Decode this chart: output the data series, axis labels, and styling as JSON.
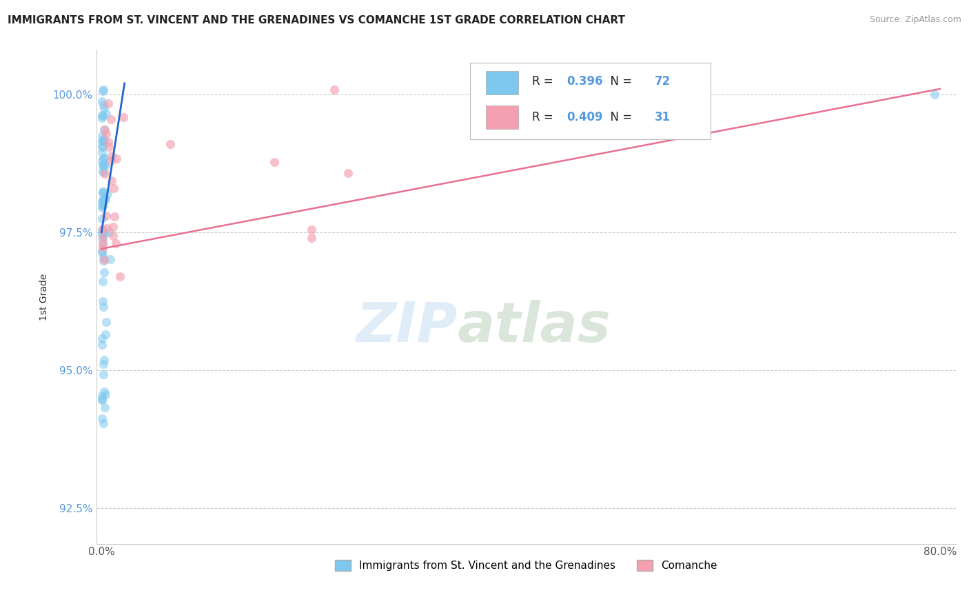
{
  "title": "IMMIGRANTS FROM ST. VINCENT AND THE GRENADINES VS COMANCHE 1ST GRADE CORRELATION CHART",
  "source": "Source: ZipAtlas.com",
  "ylabel": "1st Grade",
  "xlim": [
    -0.005,
    0.815
  ],
  "ylim": [
    0.9185,
    1.008
  ],
  "xticks": [
    0.0,
    0.2,
    0.4,
    0.6,
    0.8
  ],
  "xticklabels": [
    "0.0%",
    "",
    "",
    "",
    "80.0%"
  ],
  "yticks": [
    0.925,
    0.95,
    0.975,
    1.0
  ],
  "yticklabels": [
    "92.5%",
    "95.0%",
    "97.5%",
    "100.0%"
  ],
  "blue_color": "#7ec8f0",
  "pink_color": "#f4a0b0",
  "trend_blue": "#2266cc",
  "trend_pink": "#e87090",
  "R_blue": 0.396,
  "N_blue": 72,
  "R_pink": 0.409,
  "N_pink": 31,
  "legend_blue": "Immigrants from St. Vincent and the Grenadines",
  "legend_pink": "Comanche",
  "watermark_zip": "ZIP",
  "watermark_atlas": "atlas",
  "blue_trend_x0": 0.0,
  "blue_trend_y0": 0.975,
  "blue_trend_x1": 0.022,
  "blue_trend_y1": 1.002,
  "pink_trend_x0": 0.0,
  "pink_trend_y0": 0.972,
  "pink_trend_x1": 0.8,
  "pink_trend_y1": 1.001
}
